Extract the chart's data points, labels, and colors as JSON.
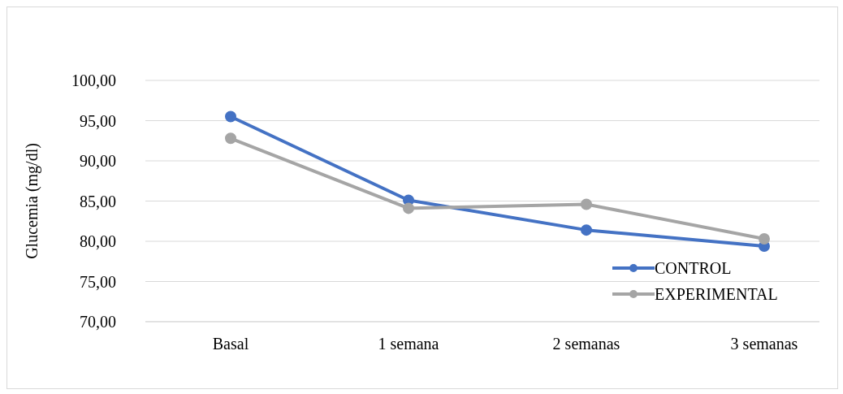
{
  "chart_data": {
    "type": "line",
    "ylabel": "Glucemia (mg/dl)",
    "categories": [
      "Basal",
      "1 semana",
      "2 semanas",
      "3 semanas"
    ],
    "series": [
      {
        "name": "CONTROL",
        "color": "#4472c4",
        "values": [
          95.5,
          85.1,
          81.4,
          79.4
        ]
      },
      {
        "name": "EXPERIMENTAL",
        "color": "#a5a5a5",
        "values": [
          92.8,
          84.1,
          84.6,
          80.3
        ]
      }
    ],
    "ylim": [
      70,
      100
    ],
    "yticks": [
      {
        "value": 70,
        "label": "70,00"
      },
      {
        "value": 75,
        "label": "75,00"
      },
      {
        "value": 80,
        "label": "80,00"
      },
      {
        "value": 85,
        "label": "85,00"
      },
      {
        "value": 90,
        "label": "90,00"
      },
      {
        "value": 95,
        "label": "95,00"
      },
      {
        "value": 100,
        "label": "100,00"
      }
    ],
    "grid": "y",
    "legend": "bottom right",
    "marker": "circle",
    "line_style": "solid"
  }
}
